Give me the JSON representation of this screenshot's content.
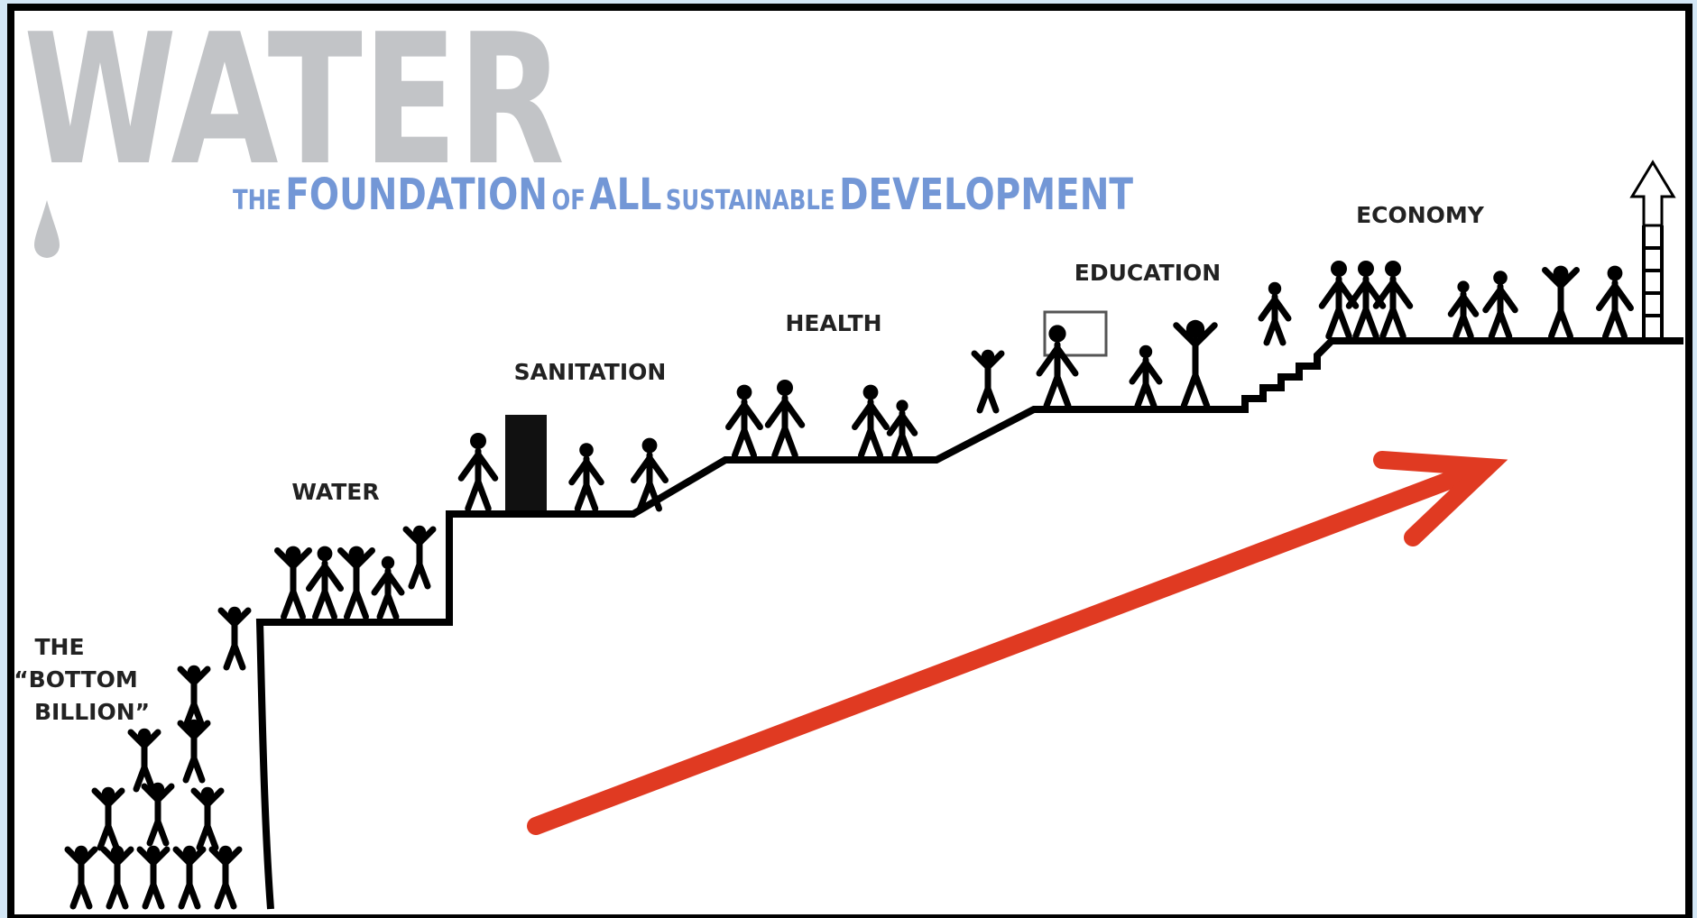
{
  "header": {
    "title": "WATER",
    "subtitle": [
      "THE",
      "FOUNDATION",
      "OF",
      "ALL",
      "SUSTAINABLE",
      "DEVELOPMENT"
    ]
  },
  "stages": [
    {
      "label": [
        "THE",
        "“BOTTOM",
        "BILLION”"
      ]
    },
    {
      "label": [
        "WATER"
      ]
    },
    {
      "label": [
        "SANITATION"
      ]
    },
    {
      "label": [
        "HEALTH"
      ]
    },
    {
      "label": [
        "EDUCATION"
      ]
    },
    {
      "label": [
        "ECONOMY"
      ]
    }
  ]
}
